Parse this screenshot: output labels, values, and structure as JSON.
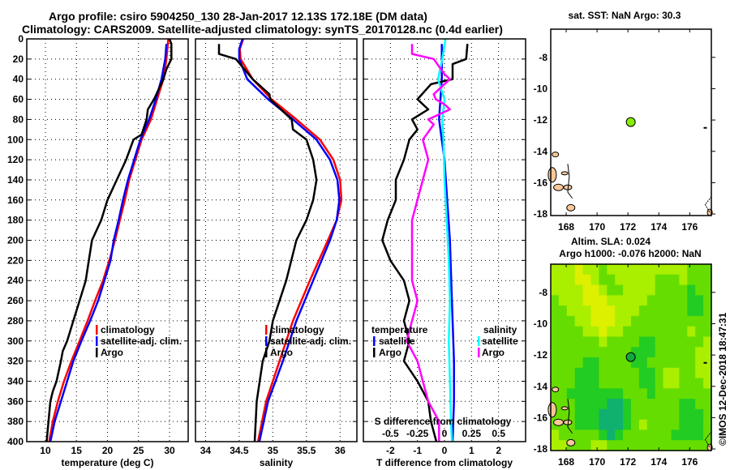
{
  "titles": {
    "line1": "Argo profile: csiro 5904250_130 28-Jan-2017 12.13S 172.18E (DM data)",
    "line2": "Climatology: CARS2009. Satellite-adjusted climatology: synTS_20170128.nc (0.4d earlier)"
  },
  "chart_data": [
    {
      "id": "temperature",
      "type": "line",
      "xlabel": "temperature (deg C)",
      "ylabel": "",
      "xlim": [
        7,
        33
      ],
      "ylim": [
        400,
        0
      ],
      "xticks": [
        10,
        15,
        20,
        25,
        30
      ],
      "yticks": [
        0,
        20,
        40,
        60,
        80,
        100,
        120,
        140,
        160,
        180,
        200,
        220,
        240,
        260,
        280,
        300,
        320,
        340,
        360,
        380,
        400
      ],
      "grid": true,
      "legend": {
        "placement": "middle-right",
        "entries": [
          "climatology",
          "satellite-adj. clim.",
          "Argo"
        ]
      },
      "series": [
        {
          "name": "climatology",
          "color": "#ff0000",
          "depth": [
            0,
            20,
            40,
            60,
            80,
            100,
            120,
            140,
            160,
            180,
            200,
            220,
            240,
            260,
            280,
            300,
            320,
            340,
            360,
            380,
            400
          ],
          "values": [
            29.8,
            29.5,
            29.0,
            28.0,
            27.0,
            25.5,
            24.5,
            23.5,
            22.8,
            22.0,
            21.2,
            20.3,
            19.3,
            18.0,
            16.8,
            15.5,
            14.2,
            13.0,
            12.0,
            11.2,
            10.6
          ]
        },
        {
          "name": "satellite-adj. clim.",
          "color": "#0000ff",
          "depth": [
            5,
            20,
            40,
            60,
            80,
            100,
            120,
            140,
            160,
            180,
            200,
            220,
            240,
            260,
            280,
            300,
            320,
            340,
            360,
            380,
            400
          ],
          "values": [
            29.5,
            29.3,
            28.7,
            27.8,
            26.7,
            25.3,
            24.3,
            23.3,
            22.5,
            21.8,
            21.0,
            20.5,
            19.5,
            18.5,
            17.2,
            15.8,
            14.5,
            13.5,
            12.5,
            11.5,
            10.8
          ]
        },
        {
          "name": "Argo",
          "color": "#000000",
          "depth": [
            0,
            5,
            20,
            30,
            40,
            60,
            70,
            80,
            95,
            100,
            120,
            140,
            160,
            180,
            200,
            220,
            240,
            260,
            280,
            300,
            310,
            320,
            340,
            350,
            360,
            380,
            400
          ],
          "values": [
            30.0,
            30.3,
            30.3,
            29.5,
            29.0,
            27.5,
            26.5,
            26.3,
            25.5,
            24.2,
            23.0,
            21.5,
            20.0,
            19.0,
            17.5,
            17.0,
            16.5,
            15.5,
            14.5,
            13.5,
            12.8,
            12.5,
            11.8,
            11.2,
            10.8,
            10.5,
            10.2
          ]
        }
      ]
    },
    {
      "id": "salinity",
      "type": "line",
      "xlabel": "salinity",
      "xlim": [
        33.85,
        36.25
      ],
      "ylim": [
        400,
        0
      ],
      "xticks": [
        34,
        34.5,
        35,
        35.5,
        36
      ],
      "xticklabels": [
        "34",
        "34.5",
        "35",
        "35.5",
        "36"
      ],
      "grid": true,
      "legend": {
        "placement": "middle-right",
        "entries": [
          "climatology",
          "satellite-adj. clim.",
          "Argo"
        ]
      },
      "series": [
        {
          "name": "climatology",
          "color": "#ff0000",
          "depth": [
            0,
            10,
            20,
            40,
            60,
            80,
            100,
            120,
            140,
            160,
            180,
            200,
            240,
            280,
            320,
            360,
            400
          ],
          "values": [
            34.56,
            34.51,
            34.52,
            34.7,
            34.98,
            35.35,
            35.7,
            35.9,
            36.0,
            36.02,
            35.95,
            35.82,
            35.55,
            35.3,
            35.1,
            34.9,
            34.78
          ]
        },
        {
          "name": "satellite-adj. clim.",
          "color": "#0000ff",
          "depth": [
            0,
            10,
            20,
            40,
            60,
            80,
            100,
            120,
            140,
            160,
            180,
            200,
            240,
            280,
            320,
            360,
            400
          ],
          "values": [
            34.55,
            34.5,
            34.5,
            34.62,
            34.93,
            35.3,
            35.65,
            35.85,
            35.96,
            35.99,
            35.95,
            35.85,
            35.6,
            35.35,
            35.15,
            34.93,
            34.8
          ]
        },
        {
          "name": "Argo",
          "color": "#000000",
          "depth": [
            5,
            15,
            20,
            40,
            55,
            60,
            80,
            90,
            100,
            120,
            140,
            160,
            180,
            200,
            240,
            280,
            300,
            320,
            360,
            400
          ],
          "values": [
            34.2,
            34.2,
            34.45,
            34.7,
            34.95,
            34.96,
            35.28,
            35.3,
            35.5,
            35.6,
            35.65,
            35.6,
            35.5,
            35.35,
            35.2,
            35.0,
            34.95,
            34.85,
            34.76,
            34.73
          ]
        }
      ]
    },
    {
      "id": "difference",
      "type": "line",
      "xlabel": "T difference from climatology",
      "xlabel_top": "S difference from climatology",
      "xlim": [
        -3,
        3
      ],
      "ylim": [
        400,
        0
      ],
      "xticks": [
        -2,
        -1,
        0,
        1,
        2
      ],
      "secondary_x": {
        "lim": [
          -0.75,
          0.75
        ],
        "ticks": [
          -0.5,
          -0.25,
          0,
          0.25,
          0.5
        ],
        "ticklabels": [
          "-0.5",
          "-0.25",
          "0",
          "0.25",
          "0.5"
        ]
      },
      "grid": true,
      "legend": {
        "placement": "middle",
        "groups": [
          {
            "title": "temperature",
            "entries": [
              "satellite",
              "Argo"
            ]
          },
          {
            "title": "salinity",
            "entries": [
              "satellite",
              "Argo"
            ]
          }
        ]
      },
      "series": [
        {
          "name": "temperature satellite",
          "axis": "T",
          "color": "#0000ff",
          "depth": [
            5,
            40,
            80,
            120,
            160,
            200,
            240,
            280,
            320,
            360,
            400
          ],
          "values": [
            -0.1,
            -0.1,
            -0.2,
            0.0,
            0.1,
            0.2,
            0.25,
            0.3,
            0.35,
            0.35,
            0.3
          ]
        },
        {
          "name": "temperature Argo",
          "axis": "T",
          "color": "#000000",
          "depth": [
            5,
            20,
            25,
            40,
            45,
            60,
            70,
            75,
            80,
            90,
            100,
            120,
            140,
            160,
            180,
            200,
            220,
            240,
            260,
            280,
            300,
            320,
            340,
            360,
            380,
            400
          ],
          "values": [
            0.85,
            0.8,
            0.3,
            0.3,
            -0.5,
            -1.0,
            -0.6,
            -0.9,
            -1.2,
            -1.0,
            -1.3,
            -1.5,
            -1.8,
            -1.8,
            -2.1,
            -2.3,
            -2.0,
            -1.5,
            -1.3,
            -1.5,
            -1.3,
            -1.5,
            -1.0,
            -0.6,
            -0.5,
            -0.3
          ]
        },
        {
          "name": "salinity satellite",
          "axis": "S",
          "color": "#00ffff",
          "depth": [
            0,
            20,
            40,
            60,
            80,
            100,
            140,
            180,
            220,
            260,
            300,
            340,
            380,
            400
          ],
          "values": [
            0.01,
            -0.02,
            -0.06,
            0.0,
            -0.02,
            -0.01,
            0.0,
            0.02,
            0.04,
            0.05,
            0.04,
            0.05,
            0.06,
            0.07
          ]
        },
        {
          "name": "salinity Argo",
          "axis": "S",
          "color": "#ff00ff",
          "depth": [
            5,
            15,
            20,
            35,
            40,
            50,
            55,
            60,
            65,
            70,
            80,
            85,
            100,
            120,
            140,
            160,
            180,
            200,
            220,
            240,
            260,
            280,
            300,
            320,
            340,
            360,
            380,
            390,
            400
          ],
          "values": [
            -0.3,
            -0.3,
            -0.1,
            0.0,
            0.05,
            -0.05,
            -0.1,
            -0.08,
            0.0,
            0.05,
            -0.15,
            -0.1,
            -0.2,
            -0.15,
            -0.2,
            -0.25,
            -0.3,
            -0.3,
            -0.3,
            -0.3,
            -0.25,
            -0.3,
            -0.35,
            -0.25,
            -0.2,
            -0.15,
            -0.05,
            -0.05,
            -0.05
          ]
        }
      ]
    },
    {
      "id": "sst-map",
      "type": "scatter",
      "title": "sat. SST: NaN Argo: 30.3",
      "xlim": [
        167,
        177.4
      ],
      "ylim": [
        -18.1,
        -6.2
      ],
      "xticks": [
        168,
        170,
        172,
        174,
        176
      ],
      "yticks": [
        -8,
        -10,
        -12,
        -14,
        -16,
        -18
      ],
      "points": [
        {
          "lon": 172.18,
          "lat": -12.13,
          "color": "#88ee00"
        }
      ],
      "land_color": "#f8c898"
    },
    {
      "id": "sla-map",
      "type": "heatmap",
      "title_line1": "Altim. SLA: 0.024",
      "title_line2": "Argo h1000: -0.076 h2000: NaN",
      "xlim": [
        167,
        177.4
      ],
      "ylim": [
        -18.1,
        -6.2
      ],
      "xticks": [
        168,
        170,
        172,
        174,
        176
      ],
      "yticks": [
        -8,
        -10,
        -12,
        -14,
        -16,
        -18
      ],
      "points": [
        {
          "lon": 172.18,
          "lat": -12.13,
          "color": "#10aa40"
        }
      ],
      "colormap": [
        "#10b070",
        "#22cc22",
        "#66dd00",
        "#aaee00",
        "#ddf000"
      ],
      "field_rows_north_to_south": [
        [
          3,
          3,
          3,
          4,
          3,
          3,
          2,
          3,
          3,
          3,
          3,
          3,
          3,
          3,
          3,
          3,
          3,
          2,
          2,
          2
        ],
        [
          3,
          3,
          3,
          4,
          4,
          3,
          2,
          2,
          3,
          3,
          3,
          3,
          3,
          2,
          2,
          2,
          3,
          2,
          2,
          2
        ],
        [
          3,
          3,
          3,
          3,
          4,
          4,
          3,
          2,
          2,
          3,
          3,
          3,
          3,
          2,
          2,
          2,
          2,
          1,
          2,
          2
        ],
        [
          2,
          3,
          3,
          3,
          4,
          4,
          4,
          3,
          3,
          3,
          3,
          3,
          2,
          2,
          2,
          2,
          2,
          1,
          1,
          2
        ],
        [
          2,
          2,
          3,
          3,
          3,
          4,
          4,
          4,
          3,
          3,
          3,
          2,
          2,
          2,
          2,
          2,
          2,
          1,
          1,
          2
        ],
        [
          2,
          2,
          2,
          3,
          3,
          4,
          4,
          4,
          3,
          3,
          2,
          2,
          2,
          2,
          2,
          2,
          2,
          2,
          2,
          2
        ],
        [
          2,
          2,
          2,
          2,
          3,
          3,
          4,
          3,
          3,
          2,
          2,
          2,
          2,
          2,
          2,
          2,
          2,
          3,
          2,
          2
        ],
        [
          2,
          2,
          2,
          2,
          2,
          2,
          3,
          2,
          2,
          2,
          2,
          1,
          1,
          2,
          2,
          2,
          2,
          2,
          2,
          3
        ],
        [
          2,
          2,
          2,
          2,
          2,
          2,
          2,
          2,
          2,
          2,
          1,
          1,
          1,
          2,
          2,
          2,
          2,
          2,
          3,
          3
        ],
        [
          2,
          2,
          2,
          2,
          1,
          1,
          2,
          2,
          2,
          2,
          1,
          1,
          2,
          2,
          2,
          2,
          2,
          2,
          3,
          3
        ],
        [
          2,
          2,
          2,
          1,
          1,
          1,
          2,
          2,
          2,
          2,
          2,
          1,
          1,
          2,
          3,
          3,
          2,
          2,
          3,
          3
        ],
        [
          2,
          2,
          2,
          1,
          1,
          1,
          2,
          2,
          2,
          2,
          2,
          1,
          1,
          2,
          3,
          3,
          2,
          2,
          2,
          3
        ],
        [
          2,
          2,
          1,
          1,
          1,
          1,
          1,
          1,
          1,
          2,
          2,
          2,
          1,
          2,
          2,
          2,
          2,
          2,
          2,
          2
        ],
        [
          2,
          2,
          2,
          1,
          1,
          1,
          1,
          0,
          0,
          1,
          2,
          2,
          2,
          2,
          2,
          2,
          1,
          1,
          2,
          2
        ],
        [
          2,
          2,
          2,
          1,
          1,
          1,
          0,
          0,
          0,
          1,
          2,
          2,
          2,
          2,
          2,
          2,
          1,
          1,
          1,
          2
        ],
        [
          2,
          2,
          2,
          1,
          1,
          1,
          0,
          0,
          0,
          1,
          2,
          3,
          2,
          2,
          2,
          2,
          1,
          1,
          1,
          2
        ],
        [
          3,
          2,
          2,
          2,
          2,
          2,
          1,
          0,
          1,
          2,
          2,
          2,
          2,
          2,
          2,
          1,
          1,
          1,
          1,
          2
        ],
        [
          3,
          3,
          2,
          2,
          2,
          3,
          3,
          2,
          2,
          2,
          2,
          2,
          2,
          2,
          2,
          2,
          2,
          2,
          2,
          2
        ]
      ],
      "side_label": "©IMOS 12-Dec-2018 18:47:31"
    }
  ]
}
